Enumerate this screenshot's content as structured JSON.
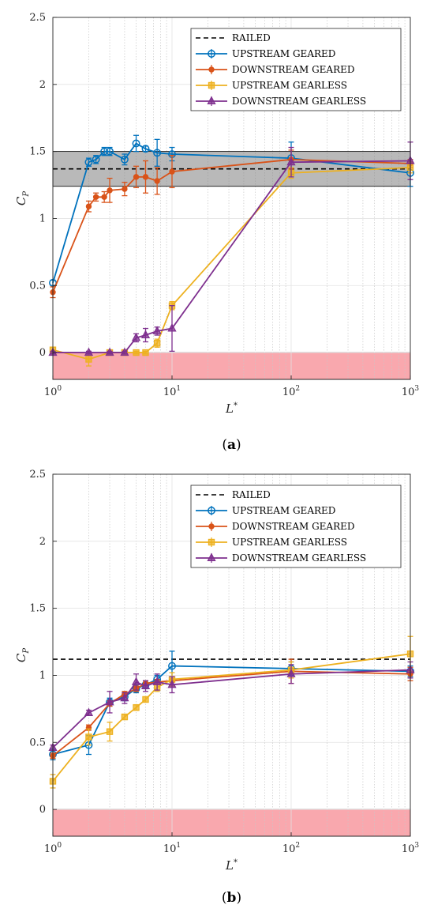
{
  "chart_data": [
    {
      "type": "line",
      "caption": "(a)",
      "xlabel": "L*",
      "ylabel": "C_P",
      "xscale": "log",
      "xlim": [
        1,
        1000
      ],
      "ylim": [
        -0.2,
        2.5
      ],
      "xticks": [
        1,
        10,
        100,
        1000
      ],
      "xtick_labels": [
        "10^0",
        "10^1",
        "10^2",
        "10^3"
      ],
      "yticks": [
        0,
        0.5,
        1,
        1.5,
        2,
        2.5
      ],
      "ytick_labels": [
        "0",
        "0.5",
        "1",
        "1.5",
        "2",
        "2.5"
      ],
      "grid": true,
      "legend_position": "top-right",
      "railed": {
        "name": "RAILED",
        "value": 1.37,
        "band": [
          1.24,
          1.5
        ],
        "color": "#000000"
      },
      "negative_region": [
        -0.2,
        0
      ],
      "series": [
        {
          "name": "UPSTREAM GEARED",
          "color": "#0072BD",
          "marker": "circle",
          "x": [
            1,
            2,
            2.3,
            2.7,
            3,
            4,
            5,
            6,
            7.5,
            10,
            100,
            1000
          ],
          "y": [
            0.52,
            1.42,
            1.44,
            1.5,
            1.5,
            1.44,
            1.56,
            1.52,
            1.49,
            1.48,
            1.45,
            1.34
          ],
          "err": [
            0.02,
            0.03,
            0.03,
            0.03,
            0.03,
            0.04,
            0.06,
            0.02,
            0.1,
            0.05,
            0.12,
            0.1
          ]
        },
        {
          "name": "DOWNSTREAM GEARED",
          "color": "#D95319",
          "marker": "dot",
          "x": [
            1,
            2,
            2.3,
            2.7,
            3,
            4,
            5,
            6,
            7.5,
            10,
            100,
            1000
          ],
          "y": [
            0.45,
            1.09,
            1.16,
            1.16,
            1.21,
            1.22,
            1.31,
            1.31,
            1.28,
            1.35,
            1.44,
            1.41
          ],
          "err": [
            0.04,
            0.04,
            0.03,
            0.04,
            0.09,
            0.05,
            0.08,
            0.12,
            0.1,
            0.12,
            0.07,
            0.03
          ]
        },
        {
          "name": "UPSTREAM GEARLESS",
          "color": "#EDB120",
          "marker": "square",
          "x": [
            1,
            2,
            3,
            4,
            5,
            6,
            7.5,
            10,
            100,
            1000
          ],
          "y": [
            0.02,
            -0.05,
            0,
            0,
            0,
            0,
            0.07,
            0.35,
            1.34,
            1.38
          ],
          "err": [
            0.02,
            0.05,
            0.01,
            0.01,
            0.01,
            0.01,
            0.03,
            0.03,
            0.04,
            0.04
          ]
        },
        {
          "name": "DOWNSTREAM GEARLESS",
          "color": "#7E2F8E",
          "marker": "triangle",
          "x": [
            1,
            2,
            3,
            4,
            5,
            6,
            7.5,
            10,
            100,
            1000
          ],
          "y": [
            0,
            0,
            0,
            0,
            0.11,
            0.13,
            0.16,
            0.18,
            1.42,
            1.43
          ],
          "err": [
            0.01,
            0.01,
            0.01,
            0.01,
            0.03,
            0.05,
            0.03,
            0.17,
            0.11,
            0.14
          ]
        }
      ]
    },
    {
      "type": "line",
      "caption": "(b)",
      "xlabel": "L*",
      "ylabel": "C_P",
      "xscale": "log",
      "xlim": [
        1,
        1000
      ],
      "ylim": [
        -0.2,
        2.5
      ],
      "xticks": [
        1,
        10,
        100,
        1000
      ],
      "xtick_labels": [
        "10^0",
        "10^1",
        "10^2",
        "10^3"
      ],
      "yticks": [
        0,
        0.5,
        1,
        1.5,
        2,
        2.5
      ],
      "ytick_labels": [
        "0",
        "0.5",
        "1",
        "1.5",
        "2",
        "2.5"
      ],
      "grid": true,
      "legend_position": "top-right",
      "railed": {
        "name": "RAILED",
        "value": 1.12,
        "color": "#000000"
      },
      "negative_region": [
        -0.2,
        0
      ],
      "series": [
        {
          "name": "UPSTREAM GEARED",
          "color": "#0072BD",
          "marker": "circle",
          "x": [
            1,
            2,
            3,
            4,
            5,
            6,
            7.5,
            10,
            100,
            1000
          ],
          "y": [
            0.41,
            0.48,
            0.8,
            0.84,
            0.9,
            0.93,
            0.97,
            1.07,
            1.05,
            1.03
          ],
          "err": [
            0.04,
            0.07,
            0.03,
            0.03,
            0.03,
            0.03,
            0.03,
            0.11,
            0.05,
            0.04
          ]
        },
        {
          "name": "DOWNSTREAM GEARED",
          "color": "#D95319",
          "marker": "dot",
          "x": [
            1,
            2,
            3,
            4,
            5,
            6,
            7.5,
            10,
            100,
            1000
          ],
          "y": [
            0.4,
            0.61,
            0.79,
            0.86,
            0.9,
            0.94,
            0.95,
            0.96,
            1.03,
            1.01
          ],
          "err": [
            0.02,
            0.02,
            0.02,
            0.02,
            0.02,
            0.02,
            0.02,
            0.03,
            0.09,
            0.05
          ]
        },
        {
          "name": "UPSTREAM GEARLESS",
          "color": "#EDB120",
          "marker": "square",
          "x": [
            1,
            2,
            3,
            4,
            5,
            6,
            7.5,
            10,
            100,
            1000
          ],
          "y": [
            0.21,
            0.54,
            0.58,
            0.69,
            0.76,
            0.82,
            0.91,
            0.97,
            1.04,
            1.16
          ],
          "err": [
            0.05,
            0.06,
            0.07,
            0.02,
            0.02,
            0.02,
            0.03,
            0.05,
            0.06,
            0.13
          ]
        },
        {
          "name": "DOWNSTREAM GEARLESS",
          "color": "#7E2F8E",
          "marker": "triangle",
          "x": [
            1,
            2,
            3,
            4,
            5,
            6,
            7.5,
            10,
            100,
            1000
          ],
          "y": [
            0.46,
            0.72,
            0.8,
            0.83,
            0.95,
            0.92,
            0.95,
            0.93,
            1.01,
            1.04
          ],
          "err": [
            0.02,
            0.02,
            0.08,
            0.04,
            0.06,
            0.04,
            0.06,
            0.06,
            0.07,
            0.06
          ]
        }
      ]
    }
  ]
}
